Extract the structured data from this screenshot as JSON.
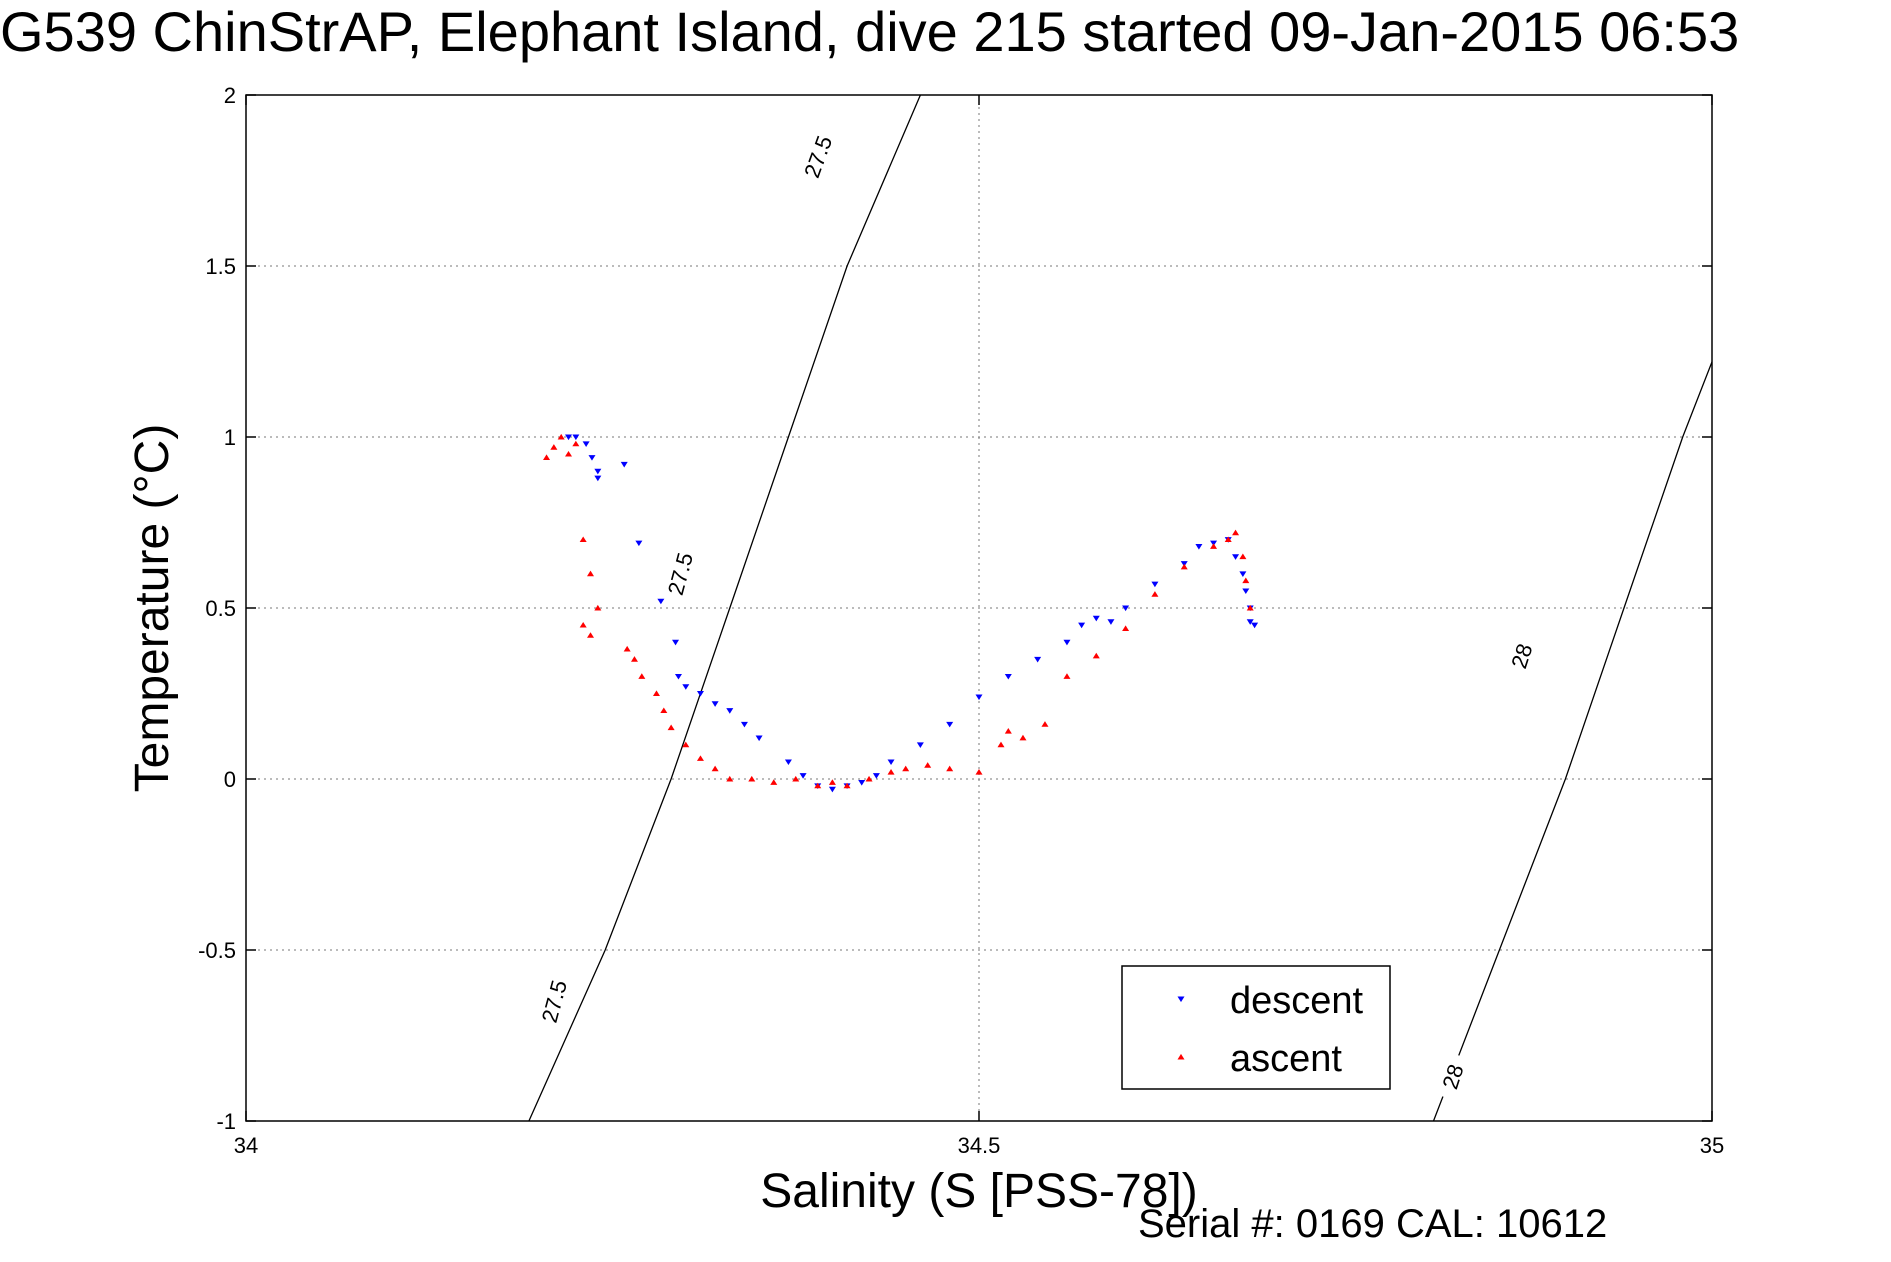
{
  "title": "G539 ChinStrAP, Elephant Island, dive 215 started 09-Jan-2015 06:53",
  "serial": "Serial #: 0169 CAL: 10612",
  "chart_data": {
    "type": "scatter",
    "xlabel": "Salinity (S [PSS-78])",
    "ylabel": "Temperature (°C)",
    "xlim": [
      34,
      35
    ],
    "ylim": [
      -1,
      2
    ],
    "xticks": [
      34,
      34.5,
      35
    ],
    "yticks": [
      -1,
      -0.5,
      0,
      0.5,
      1,
      1.5,
      2
    ],
    "xtick_labels": [
      "34",
      "34.5",
      "35"
    ],
    "ytick_labels": [
      "-1",
      "-0.5",
      "0",
      "0.5",
      "1",
      "1.5",
      "2"
    ],
    "grid": true,
    "legend_position": "bottom-right",
    "contours": [
      {
        "label": "27.5",
        "points": [
          [
            34.193,
            -1.0
          ],
          [
            34.245,
            -0.5
          ],
          [
            34.29,
            0.0
          ],
          [
            34.33,
            0.5
          ],
          [
            34.37,
            1.0
          ],
          [
            34.41,
            1.5
          ],
          [
            34.41,
            1.5
          ],
          [
            34.46,
            2.0
          ]
        ]
      },
      {
        "label": "28",
        "points": [
          [
            34.81,
            -1.0
          ],
          [
            34.855,
            -0.5
          ],
          [
            34.9,
            0.0
          ],
          [
            34.94,
            0.5
          ],
          [
            34.98,
            1.0
          ],
          [
            35.0,
            1.22
          ],
          [
            35.0,
            1.22
          ]
        ]
      }
    ],
    "contour_label_positions": [
      {
        "text": "27.5",
        "x": 34.21,
        "y": -0.65,
        "angle": -75
      },
      {
        "text": "27.5",
        "x": 34.296,
        "y": 0.6,
        "angle": -75
      },
      {
        "text": "27.5",
        "x": 34.39,
        "y": 1.82,
        "angle": -70
      },
      {
        "text": "28",
        "x": 34.87,
        "y": 0.36,
        "angle": -72
      },
      {
        "text": "28",
        "x": 34.823,
        "y": -0.87,
        "angle": -72
      }
    ],
    "series": [
      {
        "name": "descent",
        "color": "#0000ff",
        "marker": "triangle-down",
        "x": [
          34.22,
          34.225,
          34.232,
          34.236,
          34.24,
          34.24,
          34.258,
          34.268,
          34.283,
          34.293,
          34.295,
          34.3,
          34.31,
          34.32,
          34.33,
          34.34,
          34.35,
          34.37,
          34.38,
          34.39,
          34.4,
          34.41,
          34.42,
          34.43,
          34.44,
          34.46,
          34.48,
          34.5,
          34.52,
          34.54,
          34.56,
          34.57,
          34.58,
          34.59,
          34.6,
          34.62,
          34.64,
          34.65,
          34.66,
          34.67,
          34.675,
          34.68,
          34.682,
          34.685,
          34.685,
          34.688
        ],
        "y": [
          1.0,
          1.0,
          0.98,
          0.94,
          0.9,
          0.88,
          0.92,
          0.69,
          0.52,
          0.4,
          0.3,
          0.27,
          0.25,
          0.22,
          0.2,
          0.16,
          0.12,
          0.05,
          0.01,
          -0.02,
          -0.03,
          -0.02,
          -0.01,
          0.01,
          0.05,
          0.1,
          0.16,
          0.24,
          0.3,
          0.35,
          0.4,
          0.45,
          0.47,
          0.46,
          0.5,
          0.57,
          0.63,
          0.68,
          0.69,
          0.7,
          0.65,
          0.6,
          0.55,
          0.5,
          0.46,
          0.45
        ]
      },
      {
        "name": "ascent",
        "color": "#ff0000",
        "marker": "triangle-up",
        "x": [
          34.205,
          34.21,
          34.215,
          34.22,
          34.225,
          34.23,
          34.235,
          34.24,
          34.23,
          34.235,
          34.26,
          34.265,
          34.27,
          34.28,
          34.285,
          34.29,
          34.3,
          34.31,
          34.32,
          34.33,
          34.345,
          34.36,
          34.375,
          34.39,
          34.4,
          34.41,
          34.425,
          34.44,
          34.45,
          34.465,
          34.48,
          34.5,
          34.515,
          34.52,
          34.53,
          34.545,
          34.56,
          34.58,
          34.6,
          34.62,
          34.64,
          34.66,
          34.67,
          34.675,
          34.68,
          34.682,
          34.685
        ],
        "y": [
          0.94,
          0.97,
          1.0,
          0.95,
          0.98,
          0.7,
          0.6,
          0.5,
          0.45,
          0.42,
          0.38,
          0.35,
          0.3,
          0.25,
          0.2,
          0.15,
          0.1,
          0.06,
          0.03,
          0.0,
          0.0,
          -0.01,
          0.0,
          -0.02,
          -0.01,
          -0.02,
          0.0,
          0.02,
          0.03,
          0.04,
          0.03,
          0.02,
          0.1,
          0.14,
          0.12,
          0.16,
          0.3,
          0.36,
          0.44,
          0.54,
          0.62,
          0.68,
          0.7,
          0.72,
          0.65,
          0.58,
          0.5
        ]
      }
    ]
  }
}
